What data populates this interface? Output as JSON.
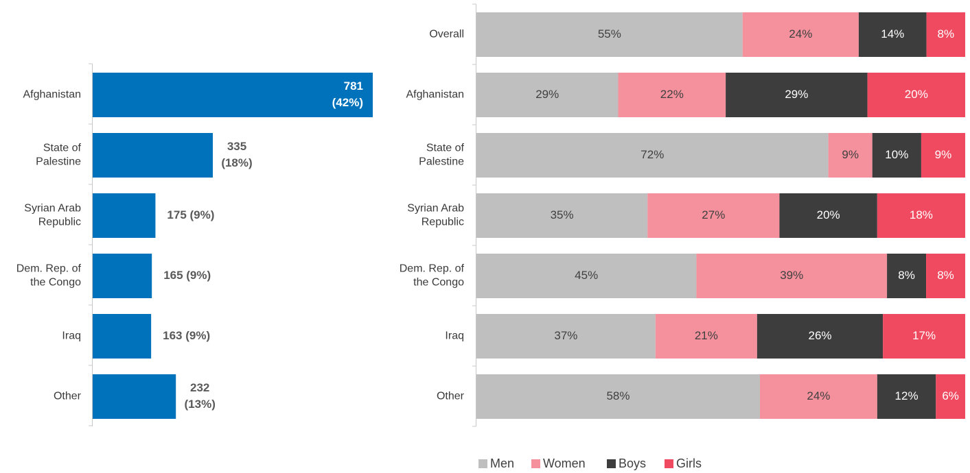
{
  "chart_data": [
    {
      "type": "bar",
      "orientation": "horizontal",
      "categories": [
        [
          "Afghanistan"
        ],
        [
          "State of",
          "Palestine"
        ],
        [
          "Syrian Arab",
          "Republic"
        ],
        [
          "Dem. Rep. of",
          "the Congo"
        ],
        [
          "Iraq"
        ],
        [
          "Other"
        ]
      ],
      "values": [
        781,
        335,
        175,
        165,
        163,
        232
      ],
      "percents": [
        "(42%)",
        "(18%)",
        "(9%)",
        "(9%)",
        "(9%)",
        "(13%)"
      ],
      "bar_color": "#0072bc",
      "grid": false
    },
    {
      "type": "bar",
      "orientation": "horizontal",
      "stacked": "100%",
      "categories": [
        [
          "Overall"
        ],
        [
          "Afghanistan"
        ],
        [
          "State of",
          "Palestine"
        ],
        [
          "Syrian Arab",
          "Republic"
        ],
        [
          "Dem. Rep. of",
          "the Congo"
        ],
        [
          "Iraq"
        ],
        [
          "Other"
        ]
      ],
      "series": [
        {
          "name": "Men",
          "color": "#bfbfbf",
          "label_color": "#404040",
          "values": [
            55,
            29,
            72,
            35,
            45,
            37,
            58
          ]
        },
        {
          "name": "Women",
          "color": "#f4919d",
          "label_color": "#404040",
          "values": [
            24,
            22,
            9,
            27,
            39,
            21,
            24
          ]
        },
        {
          "name": "Boys",
          "color": "#3d3d3d",
          "label_color": "#ffffff",
          "values": [
            14,
            29,
            10,
            20,
            8,
            26,
            12
          ]
        },
        {
          "name": "Girls",
          "color": "#ef4a60",
          "label_color": "#ffffff",
          "values": [
            8,
            20,
            9,
            18,
            8,
            17,
            6
          ]
        }
      ],
      "legend_position": "bottom",
      "grid": false
    }
  ]
}
